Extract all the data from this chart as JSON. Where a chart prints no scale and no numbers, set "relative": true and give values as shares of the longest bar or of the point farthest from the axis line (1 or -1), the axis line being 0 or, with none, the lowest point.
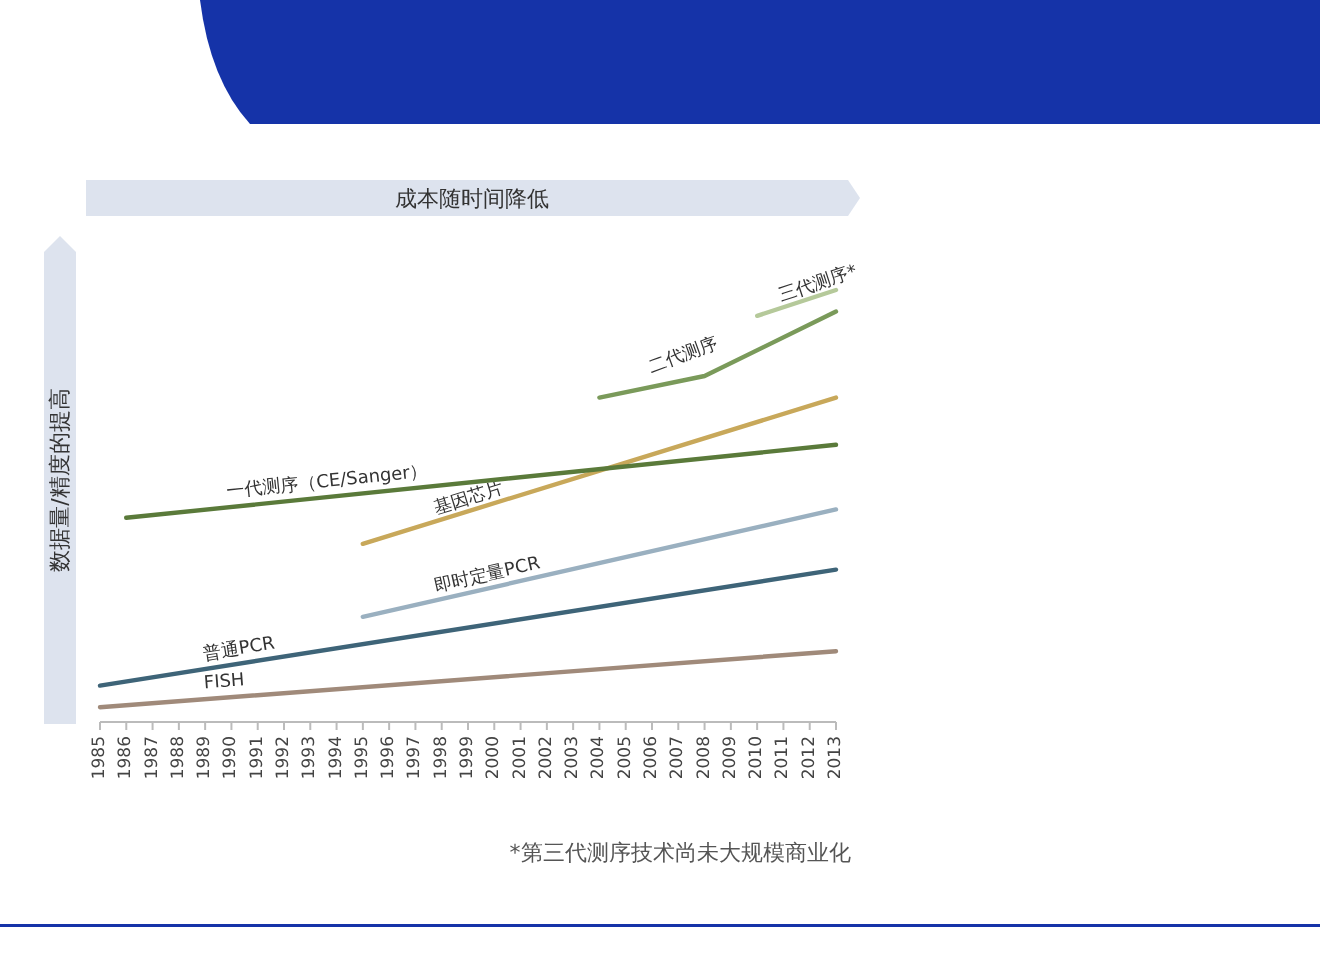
{
  "chart_data": {
    "type": "line",
    "relative": true,
    "title": "成本随时间降低",
    "ylabel": "数据量/精度的提高",
    "xlim": [
      1985,
      2013
    ],
    "xticks": [
      1985,
      1986,
      1987,
      1988,
      1989,
      1990,
      1991,
      1992,
      1993,
      1994,
      1995,
      1996,
      1997,
      1998,
      1999,
      2000,
      2001,
      2002,
      2003,
      2004,
      2005,
      2006,
      2007,
      2008,
      2009,
      2010,
      2011,
      2012,
      2013
    ],
    "marker": "none",
    "line_style": "solid",
    "series": [
      {
        "name": "三代测序*",
        "color": "#b5c99a",
        "x": [
          2010,
          2013
        ],
        "values": [
          0.94,
          1.0
        ]
      },
      {
        "name": "二代测序",
        "color": "#7a9a5a",
        "x": [
          2004,
          2008,
          2013
        ],
        "values": [
          0.75,
          0.8,
          0.95
        ]
      },
      {
        "name": "基因芯片",
        "color": "#c8a85a",
        "x": [
          1995,
          2013
        ],
        "values": [
          0.41,
          0.75
        ]
      },
      {
        "name": "一代测序（CE/Sanger）",
        "color": "#5a7a3a",
        "x": [
          1986,
          2013
        ],
        "values": [
          0.47,
          0.64
        ]
      },
      {
        "name": "即时定量PCR",
        "color": "#9ab0c0",
        "x": [
          1995,
          2013
        ],
        "values": [
          0.24,
          0.49
        ]
      },
      {
        "name": "普通PCR",
        "color": "#3e6478",
        "x": [
          1985,
          2013
        ],
        "values": [
          0.08,
          0.35
        ]
      },
      {
        "name": "FISH",
        "color": "#a08a7a",
        "x": [
          1985,
          2013
        ],
        "values": [
          0.03,
          0.16
        ]
      }
    ],
    "annotations": [
      "*第三代测序技术尚未大规模商业化"
    ]
  }
}
